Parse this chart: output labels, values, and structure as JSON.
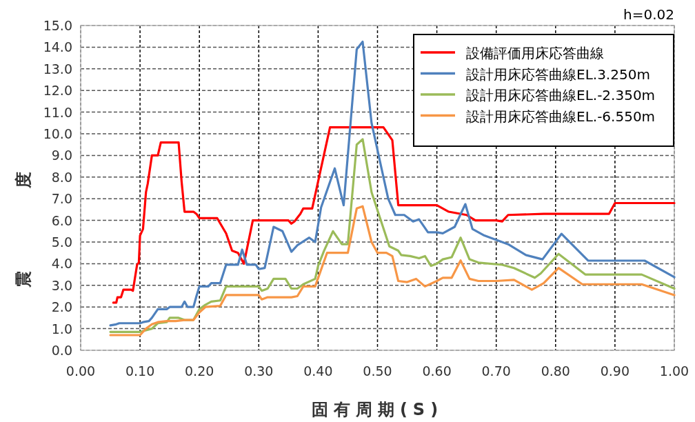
{
  "chart_data": {
    "type": "line",
    "xlabel": "固有周期(S)",
    "ylabel": "震度",
    "annotations": [
      "h=0.02"
    ],
    "xlim": [
      0,
      1
    ],
    "ylim": [
      0,
      15
    ],
    "xticks": [
      {
        "value": 0,
        "label": "0.00"
      },
      {
        "value": 0.1,
        "label": "0.10"
      },
      {
        "value": 0.2,
        "label": "0.20"
      },
      {
        "value": 0.3,
        "label": "0.30"
      },
      {
        "value": 0.4,
        "label": "0.40"
      },
      {
        "value": 0.5,
        "label": "0.50"
      },
      {
        "value": 0.6,
        "label": "0.60"
      },
      {
        "value": 0.7,
        "label": "0.70"
      },
      {
        "value": 0.8,
        "label": "0.80"
      },
      {
        "value": 0.9,
        "label": "0.90"
      },
      {
        "value": 1,
        "label": "1.00"
      }
    ],
    "yticks": [
      {
        "value": 0,
        "label": "0.0"
      },
      {
        "value": 1,
        "label": "1.0"
      },
      {
        "value": 2,
        "label": "2.0"
      },
      {
        "value": 3,
        "label": "3.0"
      },
      {
        "value": 4,
        "label": "4.0"
      },
      {
        "value": 5,
        "label": "5.0"
      },
      {
        "value": 6,
        "label": "6.0"
      },
      {
        "value": 7,
        "label": "7.0"
      },
      {
        "value": 8,
        "label": "8.0"
      },
      {
        "value": 9,
        "label": "9.0"
      },
      {
        "value": 10,
        "label": "10.0"
      },
      {
        "value": 11,
        "label": "11.0"
      },
      {
        "value": 12,
        "label": "12.0"
      },
      {
        "value": 13,
        "label": "13.0"
      },
      {
        "value": 14,
        "label": "14.0"
      },
      {
        "value": 15,
        "label": "15.0"
      }
    ],
    "grid": true,
    "legend": "top right",
    "marker": "none",
    "line_style": "solid",
    "series": [
      {
        "name": "設備評価用床応答曲線",
        "color": "#ff0000",
        "x": [
          0.055,
          0.06,
          0.062,
          0.068,
          0.072,
          0.085,
          0.088,
          0.095,
          0.098,
          0.1,
          0.105,
          0.11,
          0.113,
          0.12,
          0.13,
          0.135,
          0.165,
          0.17,
          0.175,
          0.19,
          0.195,
          0.2,
          0.23,
          0.245,
          0.255,
          0.265,
          0.275,
          0.29,
          0.35,
          0.355,
          0.36,
          0.37,
          0.375,
          0.39,
          0.42,
          0.51,
          0.525,
          0.535,
          0.6,
          0.62,
          0.65,
          0.665,
          0.7,
          0.71,
          0.72,
          0.78,
          0.89,
          0.9,
          1.0
        ],
        "values": [
          2.2,
          2.2,
          2.45,
          2.45,
          2.8,
          2.8,
          2.75,
          3.95,
          4.05,
          5.3,
          5.6,
          7.3,
          7.7,
          9.0,
          9.0,
          9.6,
          9.6,
          7.8,
          6.4,
          6.4,
          6.3,
          6.1,
          6.1,
          5.4,
          4.6,
          4.5,
          4.0,
          6.0,
          6.0,
          5.85,
          5.95,
          6.3,
          6.55,
          6.55,
          10.3,
          10.3,
          9.7,
          6.7,
          6.7,
          6.4,
          6.25,
          6.0,
          6.0,
          5.95,
          6.25,
          6.3,
          6.3,
          6.8,
          6.8
        ]
      },
      {
        "name": "設計用床応答曲線EL.3.250m",
        "color": "#4f81bd",
        "x": [
          0.05,
          0.06,
          0.065,
          0.1,
          0.105,
          0.115,
          0.12,
          0.13,
          0.145,
          0.15,
          0.17,
          0.175,
          0.18,
          0.19,
          0.195,
          0.2,
          0.215,
          0.22,
          0.235,
          0.245,
          0.265,
          0.272,
          0.28,
          0.295,
          0.3,
          0.31,
          0.325,
          0.34,
          0.355,
          0.365,
          0.385,
          0.395,
          0.405,
          0.428,
          0.443,
          0.465,
          0.475,
          0.49,
          0.518,
          0.53,
          0.545,
          0.56,
          0.57,
          0.585,
          0.6,
          0.61,
          0.63,
          0.648,
          0.66,
          0.68,
          0.72,
          0.75,
          0.778,
          0.81,
          0.855,
          0.95,
          1.0
        ],
        "values": [
          1.15,
          1.2,
          1.25,
          1.25,
          1.3,
          1.35,
          1.5,
          1.9,
          1.9,
          2.0,
          2.0,
          2.25,
          2.0,
          2.0,
          2.5,
          2.95,
          2.95,
          3.1,
          3.1,
          3.95,
          3.95,
          4.65,
          3.95,
          3.95,
          3.75,
          3.8,
          5.7,
          5.5,
          4.55,
          4.85,
          5.2,
          5.0,
          6.6,
          8.4,
          6.7,
          13.9,
          14.25,
          10.5,
          7.0,
          6.25,
          6.25,
          5.95,
          6.05,
          5.45,
          5.45,
          5.4,
          5.7,
          6.75,
          5.6,
          5.3,
          4.9,
          4.4,
          4.2,
          5.38,
          4.14,
          4.14,
          3.38
        ]
      },
      {
        "name": "設計用床応答曲線EL.-2.350m",
        "color": "#9bbb59",
        "x": [
          0.05,
          0.1,
          0.12,
          0.13,
          0.145,
          0.15,
          0.165,
          0.175,
          0.19,
          0.2,
          0.21,
          0.22,
          0.235,
          0.245,
          0.3,
          0.305,
          0.315,
          0.325,
          0.345,
          0.355,
          0.365,
          0.375,
          0.395,
          0.4,
          0.41,
          0.425,
          0.44,
          0.45,
          0.465,
          0.475,
          0.49,
          0.52,
          0.535,
          0.54,
          0.555,
          0.57,
          0.58,
          0.59,
          0.6,
          0.61,
          0.625,
          0.64,
          0.655,
          0.67,
          0.71,
          0.73,
          0.765,
          0.775,
          0.805,
          0.85,
          0.945,
          1.0
        ],
        "values": [
          0.85,
          0.85,
          1.0,
          1.25,
          1.3,
          1.5,
          1.5,
          1.4,
          1.4,
          1.9,
          2.1,
          2.25,
          2.3,
          2.95,
          2.95,
          2.75,
          2.85,
          3.3,
          3.3,
          2.85,
          2.85,
          3.05,
          3.3,
          3.9,
          4.6,
          5.5,
          4.9,
          4.9,
          9.5,
          9.75,
          7.3,
          4.8,
          4.6,
          4.4,
          4.35,
          4.25,
          4.35,
          3.9,
          4.0,
          4.2,
          4.3,
          5.2,
          4.2,
          4.05,
          3.95,
          3.8,
          3.35,
          3.55,
          4.45,
          3.5,
          3.5,
          2.85
        ]
      },
      {
        "name": "設計用床応答曲線EL.-6.550m",
        "color": "#f79646",
        "x": [
          0.05,
          0.1,
          0.11,
          0.12,
          0.13,
          0.145,
          0.16,
          0.175,
          0.19,
          0.2,
          0.21,
          0.235,
          0.245,
          0.3,
          0.305,
          0.315,
          0.355,
          0.365,
          0.375,
          0.395,
          0.415,
          0.45,
          0.465,
          0.475,
          0.49,
          0.5,
          0.515,
          0.525,
          0.535,
          0.55,
          0.565,
          0.58,
          0.6,
          0.61,
          0.625,
          0.64,
          0.655,
          0.67,
          0.7,
          0.73,
          0.76,
          0.78,
          0.805,
          0.845,
          0.945,
          1.0
        ],
        "values": [
          0.7,
          0.7,
          1.0,
          1.2,
          1.3,
          1.35,
          1.35,
          1.4,
          1.4,
          1.75,
          2.0,
          2.05,
          2.55,
          2.55,
          2.35,
          2.45,
          2.45,
          2.5,
          2.95,
          2.95,
          4.5,
          4.5,
          6.55,
          6.65,
          5.0,
          4.5,
          4.5,
          4.35,
          3.2,
          3.15,
          3.3,
          2.95,
          3.2,
          3.35,
          3.35,
          4.15,
          3.3,
          3.2,
          3.2,
          3.25,
          2.8,
          3.1,
          3.8,
          3.05,
          3.05,
          2.55
        ]
      }
    ]
  }
}
